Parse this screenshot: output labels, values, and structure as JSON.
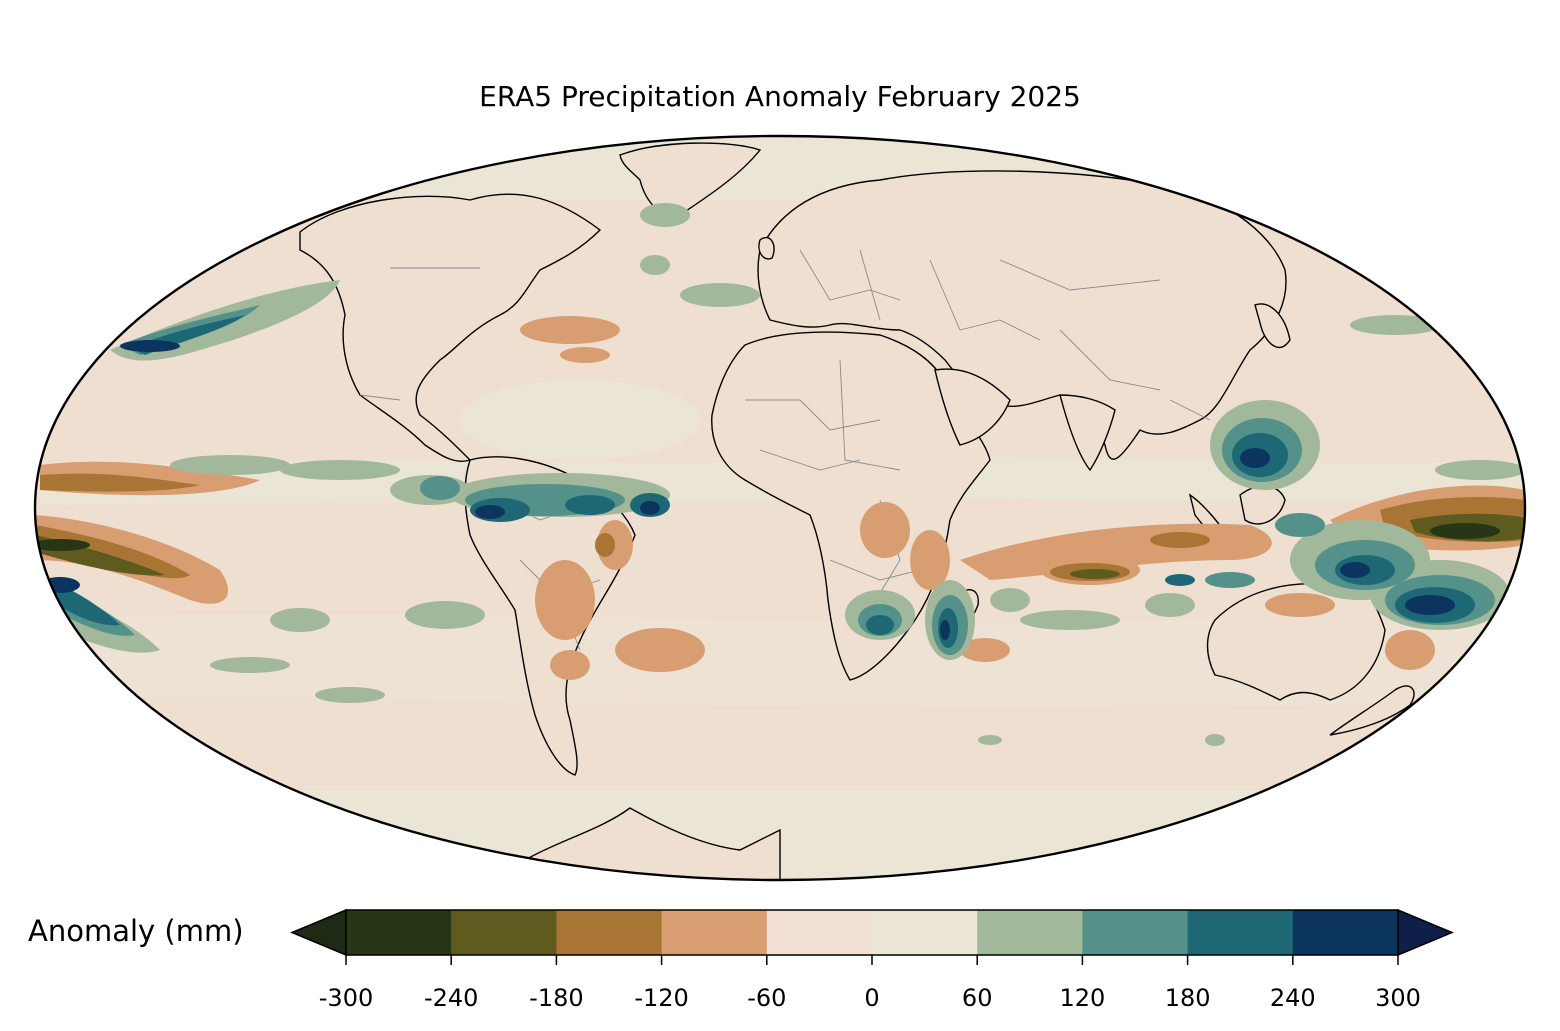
{
  "map": {
    "title": "ERA5 Precipitation Anomaly February 2025",
    "projection": "mollweide",
    "colorbar": {
      "label": "Anomaly (mm)",
      "ticks": [
        "-300",
        "-240",
        "-180",
        "-120",
        "-60",
        "0",
        "60",
        "120",
        "180",
        "240",
        "300"
      ],
      "extend": "both",
      "colors": [
        "#263616",
        "#5f5b1e",
        "#a87534",
        "#d89e72",
        "#f0dfd2",
        "#ebe5d5",
        "#a2b89a",
        "#53918a",
        "#1e6876",
        "#0b355e"
      ],
      "under_color": "#1f2a16",
      "over_color": "#0e1f4a"
    },
    "colors": {
      "land_outline": "#000000",
      "borders": "#8a8a8a",
      "ocean_base": "#efdfd1",
      "light_band": "#ebe5d5"
    }
  }
}
